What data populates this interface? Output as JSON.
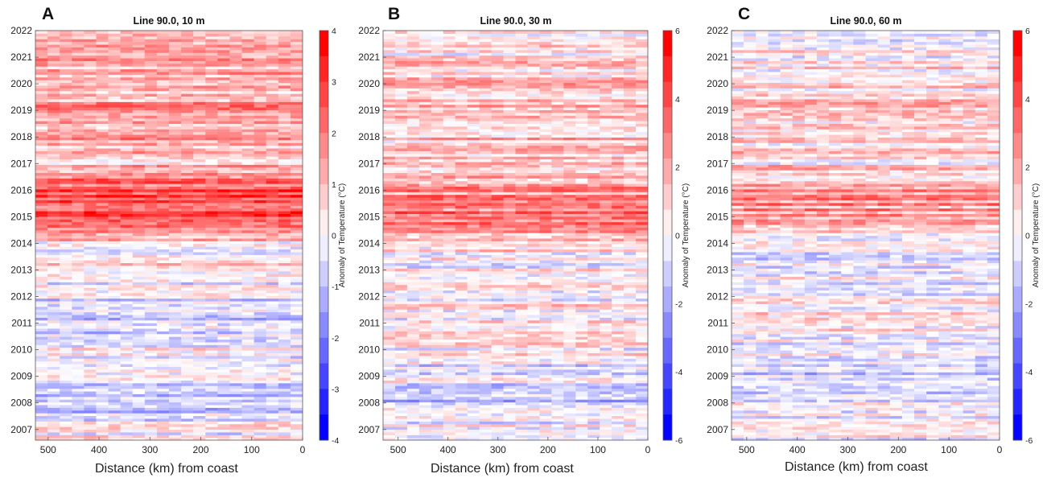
{
  "chart_data": [
    {
      "type": "heatmap",
      "panel_label": "A",
      "title": "Line 90.0, 10 m",
      "xlabel": "Distance (km) from coast",
      "ylabel": "",
      "colorbar_label": "Anomaly of Temperature (°C)",
      "x_ticks": [
        "500",
        "400",
        "300",
        "200",
        "100",
        "0"
      ],
      "y_ticks": [
        "2007",
        "2008",
        "2009",
        "2010",
        "2011",
        "2012",
        "2013",
        "2014",
        "2015",
        "2016",
        "2017",
        "2018",
        "2019",
        "2020",
        "2021",
        "2022"
      ],
      "colorbar_ticks": [
        "4",
        "3",
        "2",
        "1",
        "0",
        "-1",
        "-2",
        "-3",
        "-4"
      ],
      "xlim": [
        525,
        0
      ],
      "ylim": [
        2006.6,
        2022
      ],
      "clim": [
        -4,
        4
      ],
      "x_reversed": true,
      "colormap": {
        "negative": "#0000ff",
        "zero": "#ffffff",
        "positive": "#ff0000"
      },
      "anomaly_by_year": [
        {
          "year": 2007,
          "value": 0.1
        },
        {
          "year": 2008,
          "value": -0.9
        },
        {
          "year": 2009,
          "value": -0.2
        },
        {
          "year": 2010,
          "value": -0.1
        },
        {
          "year": 2011,
          "value": -0.6
        },
        {
          "year": 2012,
          "value": -0.4
        },
        {
          "year": 2013,
          "value": 0.2
        },
        {
          "year": 2014,
          "value": 0.4
        },
        {
          "year": 2015,
          "value": 3.0
        },
        {
          "year": 2016,
          "value": 2.6
        },
        {
          "year": 2017,
          "value": 0.9
        },
        {
          "year": 2018,
          "value": 1.5
        },
        {
          "year": 2019,
          "value": 1.6
        },
        {
          "year": 2020,
          "value": 1.1
        },
        {
          "year": 2021,
          "value": 1.5
        },
        {
          "year": 2022,
          "value": 0.6
        }
      ]
    },
    {
      "type": "heatmap",
      "panel_label": "B",
      "title": "Line 90.0, 30 m",
      "xlabel": "Distance (km) from coast",
      "ylabel": "",
      "colorbar_label": "Anomaly of Temperature (°C)",
      "x_ticks": [
        "500",
        "400",
        "300",
        "200",
        "100",
        "0"
      ],
      "y_ticks": [
        "2007",
        "2008",
        "2009",
        "2010",
        "2011",
        "2012",
        "2013",
        "2014",
        "2015",
        "2016",
        "2017",
        "2018",
        "2019",
        "2020",
        "2021",
        "2022"
      ],
      "colorbar_ticks": [
        "6",
        "4",
        "2",
        "0",
        "-2",
        "-4",
        "-6"
      ],
      "xlim": [
        530,
        0
      ],
      "ylim": [
        2006.6,
        2022
      ],
      "clim": [
        -6,
        6
      ],
      "x_reversed": true,
      "colormap": {
        "negative": "#0000ff",
        "zero": "#ffffff",
        "positive": "#ff0000"
      },
      "anomaly_by_year": [
        {
          "year": 2007,
          "value": -0.2
        },
        {
          "year": 2008,
          "value": -0.9
        },
        {
          "year": 2009,
          "value": -0.5
        },
        {
          "year": 2010,
          "value": 0.1
        },
        {
          "year": 2011,
          "value": 0.4
        },
        {
          "year": 2012,
          "value": 0.3
        },
        {
          "year": 2013,
          "value": 0.1
        },
        {
          "year": 2014,
          "value": 0.5
        },
        {
          "year": 2015,
          "value": 3.2
        },
        {
          "year": 2016,
          "value": 2.6
        },
        {
          "year": 2017,
          "value": 1.0
        },
        {
          "year": 2018,
          "value": 1.5
        },
        {
          "year": 2019,
          "value": 1.7
        },
        {
          "year": 2020,
          "value": 1.2
        },
        {
          "year": 2021,
          "value": 0.8
        },
        {
          "year": 2022,
          "value": 0.3
        }
      ]
    },
    {
      "type": "heatmap",
      "panel_label": "C",
      "title": "Line 90.0, 60 m",
      "xlabel": "Distance (km) from coast",
      "ylabel": "",
      "colorbar_label": "Anomaly of Temperature (°C)",
      "x_ticks": [
        "500",
        "400",
        "300",
        "200",
        "100",
        "0"
      ],
      "y_ticks": [
        "2007",
        "2008",
        "2009",
        "2010",
        "2011",
        "2012",
        "2013",
        "2014",
        "2015",
        "2016",
        "2017",
        "2018",
        "2019",
        "2020",
        "2021",
        "2022"
      ],
      "colorbar_ticks": [
        "6",
        "4",
        "2",
        "0",
        "-2",
        "-4",
        "-6"
      ],
      "xlim": [
        530,
        0
      ],
      "ylim": [
        2006.6,
        2022
      ],
      "clim": [
        -6,
        6
      ],
      "x_reversed": true,
      "colormap": {
        "negative": "#0000ff",
        "zero": "#ffffff",
        "positive": "#ff0000"
      },
      "anomaly_by_year": [
        {
          "year": 2007,
          "value": 0.3
        },
        {
          "year": 2008,
          "value": -0.6
        },
        {
          "year": 2009,
          "value": -1.0
        },
        {
          "year": 2010,
          "value": -0.1
        },
        {
          "year": 2011,
          "value": 0.6
        },
        {
          "year": 2012,
          "value": 0.2
        },
        {
          "year": 2013,
          "value": 0.1
        },
        {
          "year": 2014,
          "value": -0.6
        },
        {
          "year": 2015,
          "value": 2.4
        },
        {
          "year": 2016,
          "value": 2.2
        },
        {
          "year": 2017,
          "value": 0.7
        },
        {
          "year": 2018,
          "value": 1.3
        },
        {
          "year": 2019,
          "value": 1.1
        },
        {
          "year": 2020,
          "value": 0.8
        },
        {
          "year": 2021,
          "value": 0.5
        },
        {
          "year": 2022,
          "value": 0.2
        }
      ]
    }
  ]
}
